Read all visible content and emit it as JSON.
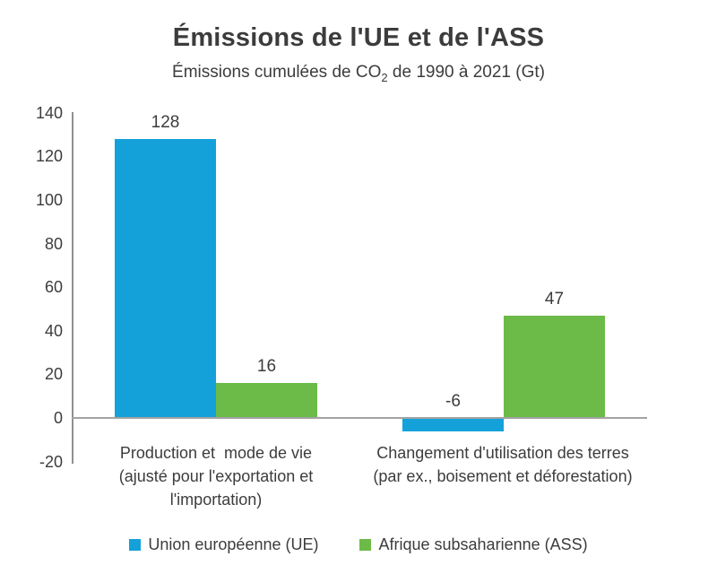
{
  "header": {
    "title": "Émissions de l'UE et de l'ASS",
    "subtitle": {
      "prefix": "Émissions cumulées de CO",
      "sub": "2",
      "suffix": " de 1990 à 2021 (Gt)"
    }
  },
  "colors": {
    "eu_blue": "#14a1da",
    "ass_green": "#6cba47",
    "text": "#3c3c3c",
    "axis_gray": "#9a9a9a",
    "background": "#ffffff"
  },
  "chart_data": {
    "type": "bar",
    "title": "Émissions de l'UE et de l'ASS",
    "subtitle": "Émissions cumulées de CO2 de 1990 à 2021 (Gt)",
    "categories": [
      "Production et  mode de vie (ajusté pour l'exportation et l'importation)",
      "Changement d'utilisation des terres (par ex., boisement et déforestation)"
    ],
    "category_lines": [
      [
        "Production et  mode de vie",
        "(ajusté pour l'exportation et",
        "l'importation)"
      ],
      [
        "Changement d'utilisation des terres",
        "(par ex., boisement et déforestation)"
      ]
    ],
    "series": [
      {
        "name": "Union européenne (UE)",
        "color": "#14a1da",
        "values": [
          128,
          -6
        ]
      },
      {
        "name": "Afrique subsaharienne (ASS)",
        "color": "#6cba47",
        "values": [
          16,
          47
        ]
      }
    ],
    "value_labels": [
      [
        "128",
        "-6"
      ],
      [
        "16",
        "47"
      ]
    ],
    "xlabel": "",
    "ylabel": "",
    "ylim": [
      -20,
      140
    ],
    "yticks": [
      140,
      120,
      100,
      80,
      60,
      40,
      20,
      0,
      -20
    ],
    "grid": false,
    "legend_position": "bottom"
  },
  "legend": {
    "items": [
      {
        "label": "Union européenne (UE)",
        "color": "#14a1da"
      },
      {
        "label": "Afrique subsaharienne (ASS)",
        "color": "#6cba47"
      }
    ]
  }
}
